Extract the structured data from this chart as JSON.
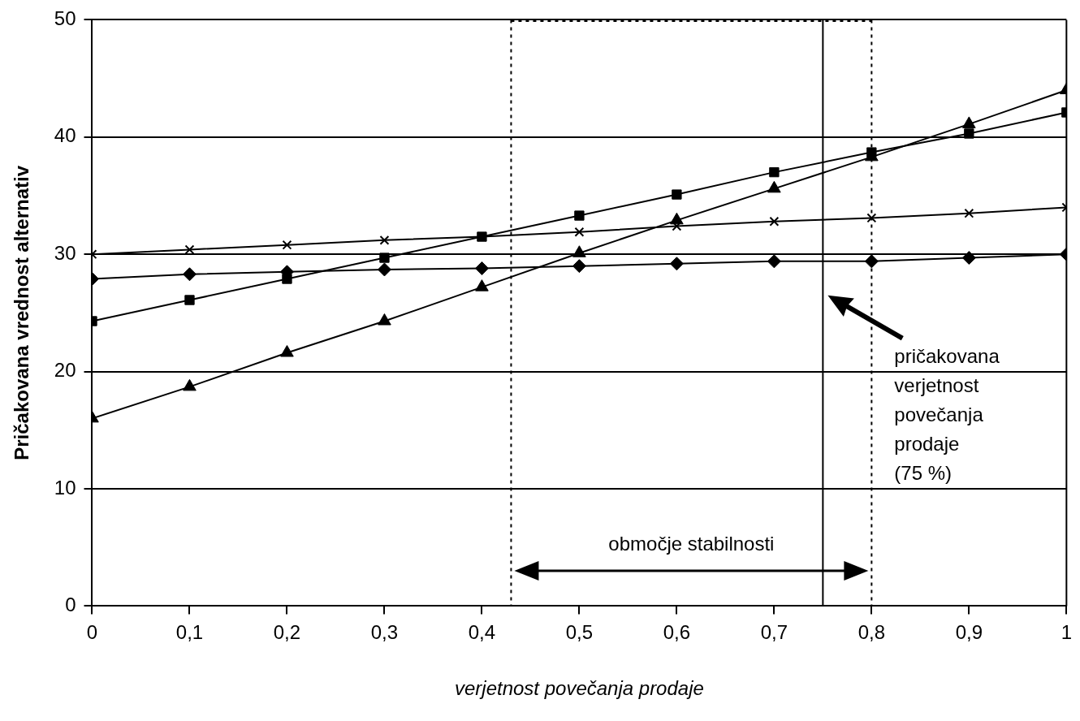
{
  "chart_data": {
    "type": "line",
    "xlabel": "verjetnost povečanja prodaje",
    "ylabel": "Pričakovana vrednost alternativ",
    "x": [
      0,
      0.1,
      0.2,
      0.3,
      0.4,
      0.5,
      0.6,
      0.7,
      0.8,
      0.9,
      1
    ],
    "series": [
      {
        "color": "#000000",
        "marker": "diamond",
        "values": [
          27.9,
          28.3,
          28.5,
          28.7,
          28.8,
          29.0,
          29.2,
          29.4,
          29.4,
          29.7,
          30
        ]
      },
      {
        "color": "#000000",
        "marker": "square",
        "values": [
          24.3,
          26.1,
          27.9,
          29.7,
          31.5,
          33.3,
          35.1,
          37.0,
          38.7,
          40.3,
          42.1
        ]
      },
      {
        "color": "#000000",
        "marker": "triangle",
        "values": [
          16.0,
          18.7,
          21.6,
          24.3,
          27.2,
          30.1,
          32.9,
          35.6,
          38.3,
          41.1,
          44.0
        ]
      },
      {
        "color": "#000000",
        "marker": "cross",
        "values": [
          30.0,
          30.4,
          30.8,
          31.2,
          31.5,
          31.9,
          32.4,
          32.8,
          33.1,
          33.5,
          34.0
        ]
      }
    ],
    "xlim": [
      0,
      1
    ],
    "xticks": [
      0,
      {
        "value": 0.1,
        "label": "0,1"
      },
      {
        "value": 0.2,
        "label": "0,2"
      },
      {
        "value": 0.3,
        "label": "0,3"
      },
      {
        "value": 0.4,
        "label": "0,4"
      },
      {
        "value": 0.5,
        "label": "0,5"
      },
      {
        "value": 0.6,
        "label": "0,6"
      },
      {
        "value": 0.7,
        "label": "0,7"
      },
      {
        "value": 0.8,
        "label": "0,8"
      },
      {
        "value": 0.9,
        "label": "0,9"
      },
      1
    ],
    "ylim": [
      0,
      50
    ],
    "yticks": [
      0,
      10,
      20,
      30,
      40,
      50
    ],
    "grid": "y",
    "legend": false,
    "line_style": "solid",
    "ref_lines": [
      {
        "axis": "x",
        "value": 0.43,
        "color": "#000000",
        "line_style": "dotted"
      },
      {
        "axis": "x",
        "value": 0.75,
        "label": "pričakovana verjetnost povečanja prodaje (75 %)",
        "color": "#000000",
        "line_style": "solid"
      },
      {
        "axis": "x",
        "value": 0.8,
        "color": "#000000",
        "line_style": "dotted"
      }
    ],
    "annotations": [
      "območje stabilnosti"
    ]
  }
}
